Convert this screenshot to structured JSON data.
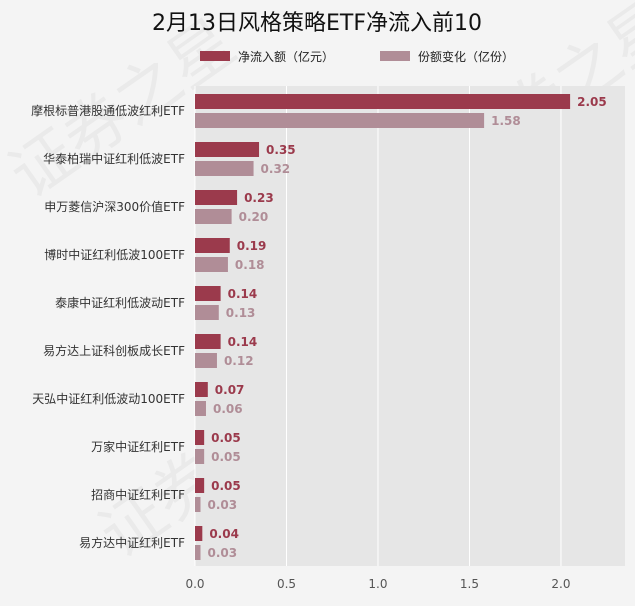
{
  "chart_data": {
    "type": "bar",
    "orientation": "horizontal",
    "title": "2月13日风格策略ETF净流入前10",
    "categories": [
      "摩根标普港股通低波红利ETF",
      "华泰柏瑞中证红利低波ETF",
      "申万菱信沪深300价值ETF",
      "博时中证红利低波100ETF",
      "泰康中证红利低波动ETF",
      "易方达上证科创板成长ETF",
      "天弘中证红利低波动100ETF",
      "万家中证红利ETF",
      "招商中证红利ETF",
      "易方达中证红利ETF"
    ],
    "series": [
      {
        "name": "净流入额（亿元）",
        "color": "#9b3a4c",
        "values": [
          2.05,
          0.35,
          0.23,
          0.19,
          0.14,
          0.14,
          0.07,
          0.05,
          0.05,
          0.04
        ],
        "labels": [
          "2.05",
          "0.35",
          "0.23",
          "0.19",
          "0.14",
          "0.14",
          "0.07",
          "0.05",
          "0.05",
          "0.04"
        ]
      },
      {
        "name": "份额变化（亿份）",
        "color": "#b08d97",
        "values": [
          1.58,
          0.32,
          0.2,
          0.18,
          0.13,
          0.12,
          0.06,
          0.05,
          0.03,
          0.03
        ],
        "labels": [
          "1.58",
          "0.32",
          "0.20",
          "0.18",
          "0.13",
          "0.12",
          "0.06",
          "0.05",
          "0.03",
          "0.03"
        ]
      }
    ],
    "xlim": [
      0,
      2.35
    ],
    "xticks": [
      0.0,
      0.5,
      1.0,
      1.5,
      2.0
    ],
    "xtick_labels": [
      "0.0",
      "0.5",
      "1.0",
      "1.5",
      "2.0"
    ],
    "legend_position": "top",
    "grid": true,
    "watermark": "证券之星"
  }
}
